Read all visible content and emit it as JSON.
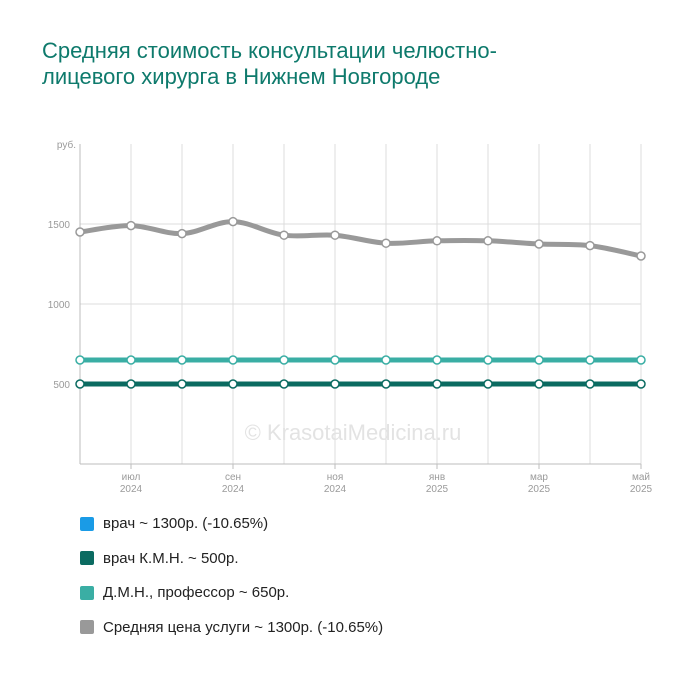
{
  "title": "Средняя стоимость консультации челюстно-лицевого хирурга в Нижнем Новгороде",
  "watermark": "© KrasotaiMedicina.ru",
  "chart_data": {
    "type": "line",
    "ylabel": "руб.",
    "ylim": [
      0,
      2000
    ],
    "yticks": [
      500,
      1000,
      1500
    ],
    "x_tick_labels": [
      {
        "month": "июл",
        "year": "2024"
      },
      {
        "month": "сен",
        "year": "2024"
      },
      {
        "month": "ноя",
        "year": "2024"
      },
      {
        "month": "янв",
        "year": "2025"
      },
      {
        "month": "мар",
        "year": "2025"
      },
      {
        "month": "май",
        "year": "2025"
      }
    ],
    "x": [
      "2024-06",
      "2024-07",
      "2024-08",
      "2024-09",
      "2024-10",
      "2024-11",
      "2024-12",
      "2025-01",
      "2025-02",
      "2025-03",
      "2025-04",
      "2025-05"
    ],
    "grid": true,
    "series": [
      {
        "name": "Средняя цена услуги",
        "color": "#999999",
        "values": [
          1450,
          1490,
          1440,
          1515,
          1430,
          1430,
          1380,
          1395,
          1395,
          1375,
          1365,
          1300
        ]
      },
      {
        "name": "Д.М.Н., профессор",
        "color": "#3aaea4",
        "values": [
          650,
          650,
          650,
          650,
          650,
          650,
          650,
          650,
          650,
          650,
          650,
          650
        ]
      },
      {
        "name": "врач К.М.Н.",
        "color": "#0b6b61",
        "values": [
          500,
          500,
          500,
          500,
          500,
          500,
          500,
          500,
          500,
          500,
          500,
          500
        ]
      }
    ]
  },
  "legend": [
    {
      "label": "врач ~ 1300р. (-10.65%)",
      "color": "#1a9be6"
    },
    {
      "label": "врач К.М.Н. ~ 500р.",
      "color": "#0b6b61"
    },
    {
      "label": "Д.М.Н., профессор ~ 650р.",
      "color": "#3aaea4"
    },
    {
      "label": "Средняя цена услуги ~ 1300р. (-10.65%)",
      "color": "#999999"
    }
  ]
}
